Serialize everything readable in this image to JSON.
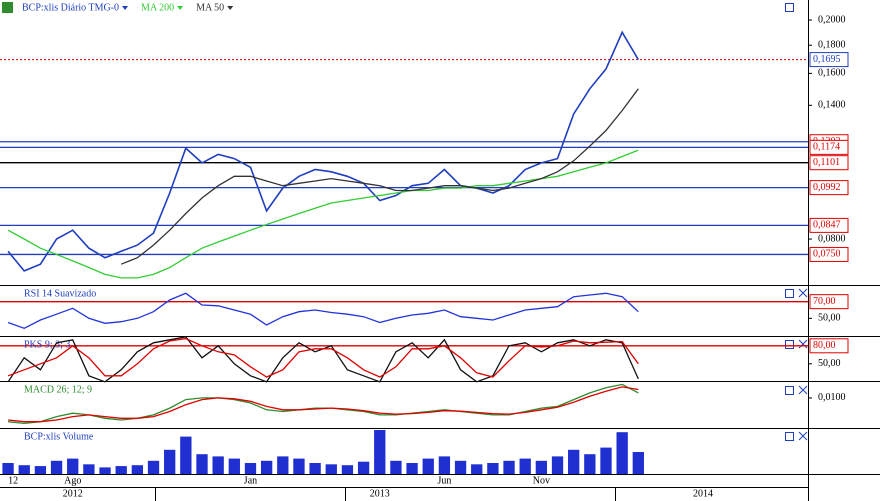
{
  "chart_data": [
    {
      "type": "line",
      "log": true,
      "ylim": [
        0.066,
        0.2175
      ],
      "yticks": [
        {
          "value": 0.2,
          "label": "0,2000"
        },
        {
          "value": 0.18,
          "label": "0,1800"
        },
        {
          "value": 0.16,
          "label": "0,1600"
        },
        {
          "value": 0.14,
          "label": "0,1400"
        },
        {
          "value": 0.08,
          "label": "0,0800"
        }
      ],
      "categories": [
        "12",
        null,
        null,
        null,
        "Ago",
        null,
        null,
        null,
        null,
        null,
        null,
        null,
        null,
        null,
        null,
        "Jan",
        null,
        null,
        null,
        null,
        null,
        null,
        null,
        null,
        null,
        null,
        null,
        "Jun",
        null,
        null,
        null,
        null,
        null,
        "Nov",
        null,
        null,
        null,
        null,
        null,
        null,
        null,
        null,
        null,
        null,
        null,
        null,
        null,
        null,
        null,
        null
      ],
      "year_labels": [
        null,
        null,
        null,
        null,
        "2012",
        null,
        null,
        null,
        null,
        null,
        null,
        null,
        null,
        null,
        null,
        null,
        null,
        null,
        null,
        null,
        null,
        null,
        null,
        "2013",
        null,
        null,
        null,
        null,
        null,
        null,
        null,
        null,
        null,
        null,
        null,
        null,
        null,
        null,
        null,
        null,
        null,
        null,
        null,
        "2014",
        null,
        null,
        null,
        null,
        null,
        null
      ],
      "series": [
        {
          "name": "BCP:xlis Diário TMG-0",
          "color": "#1f3fbf",
          "values": [
            0.076,
            0.07,
            0.072,
            0.08,
            0.083,
            0.077,
            0.074,
            0.076,
            0.078,
            0.082,
            0.097,
            0.117,
            0.11,
            0.114,
            0.112,
            0.108,
            0.09,
            0.099,
            0.104,
            0.107,
            0.106,
            0.104,
            0.101,
            0.094,
            0.096,
            0.1,
            0.101,
            0.107,
            0.1,
            0.099,
            0.097,
            0.1,
            0.107,
            0.11,
            0.112,
            0.135,
            0.15,
            0.163,
            0.19,
            0.1695,
            null,
            null,
            null,
            null,
            null,
            null,
            null,
            null,
            null,
            null
          ]
        },
        {
          "name": "MA 200",
          "color": "#33cc33",
          "values": [
            0.083,
            0.08,
            0.077,
            0.075,
            0.073,
            0.071,
            0.069,
            0.068,
            0.068,
            0.069,
            0.071,
            0.074,
            0.077,
            0.079,
            0.081,
            0.083,
            0.085,
            0.087,
            0.089,
            0.091,
            0.093,
            0.094,
            0.095,
            0.096,
            0.097,
            0.098,
            0.098,
            0.099,
            0.099,
            0.1,
            0.1,
            0.101,
            0.102,
            0.103,
            0.104,
            0.106,
            0.108,
            0.11,
            0.113,
            0.116,
            null,
            null,
            null,
            null,
            null,
            null,
            null,
            null,
            null,
            null
          ]
        },
        {
          "name": "MA 50",
          "color": "#333333",
          "values": [
            null,
            null,
            null,
            null,
            null,
            null,
            null,
            0.072,
            0.074,
            0.078,
            0.083,
            0.089,
            0.095,
            0.1,
            0.104,
            0.104,
            0.102,
            0.1,
            0.101,
            0.102,
            0.103,
            0.102,
            0.101,
            0.1,
            0.098,
            0.098,
            0.099,
            0.1,
            0.1,
            0.099,
            0.098,
            0.099,
            0.101,
            0.103,
            0.106,
            0.111,
            0.118,
            0.126,
            0.137,
            0.15,
            null,
            null,
            null,
            null,
            null,
            null,
            null,
            null,
            null,
            null
          ]
        }
      ],
      "levels": [
        {
          "value": 0.1202,
          "label": "0,1202",
          "color": "#1f3fbf"
        },
        {
          "value": 0.1174,
          "label": "0,1174",
          "color": "#1f3fbf"
        },
        {
          "value": 0.1101,
          "label": "0,1101",
          "color": "#000000"
        },
        {
          "value": 0.0992,
          "label": "0,0992",
          "color": "#1f3fbf"
        },
        {
          "value": 0.0847,
          "label": "0,0847",
          "color": "#1f3fbf"
        },
        {
          "value": 0.075,
          "label": "0,0750",
          "color": "#1f3fbf"
        }
      ],
      "last": {
        "value": 0.1695,
        "label": "0,1695",
        "color": "#1f3fbf"
      }
    },
    {
      "type": "line",
      "title": "RSI 14 Suavizado",
      "ylim": [
        30,
        87.6
      ],
      "yticks": [
        {
          "value": 50,
          "label": "50,00"
        }
      ],
      "levels": [
        {
          "value": 70,
          "label": "70,00",
          "color": "#e00000"
        }
      ],
      "series": [
        {
          "color": "#2233dd",
          "values": [
            45,
            38,
            48,
            55,
            62,
            50,
            44,
            46,
            50,
            58,
            72,
            80,
            66,
            65,
            60,
            55,
            42,
            52,
            58,
            60,
            57,
            55,
            52,
            45,
            50,
            54,
            56,
            60,
            52,
            50,
            48,
            54,
            60,
            62,
            64,
            76,
            78,
            80,
            76,
            58,
            null,
            null,
            null,
            null,
            null,
            null,
            null,
            null,
            null,
            null
          ]
        }
      ]
    },
    {
      "type": "line",
      "title": "PKS 9; 3; 3",
      "ylim": [
        23,
        93
      ],
      "yticks": [
        {
          "value": 50,
          "label": "50,00"
        }
      ],
      "levels": [
        {
          "value": 80,
          "label": "80,00",
          "color": "#e00000"
        }
      ],
      "series": [
        {
          "color": "#111111",
          "values": [
            20,
            60,
            40,
            85,
            90,
            30,
            20,
            40,
            70,
            85,
            90,
            95,
            60,
            80,
            50,
            30,
            20,
            60,
            85,
            70,
            80,
            40,
            30,
            20,
            70,
            85,
            60,
            90,
            40,
            20,
            30,
            80,
            85,
            70,
            85,
            90,
            80,
            90,
            85,
            25,
            null,
            null,
            null,
            null,
            null,
            null,
            null,
            null,
            null,
            null
          ]
        },
        {
          "color": "#e00000",
          "values": [
            30,
            40,
            50,
            60,
            80,
            60,
            30,
            30,
            50,
            75,
            88,
            92,
            80,
            70,
            65,
            45,
            28,
            40,
            70,
            75,
            75,
            60,
            40,
            28,
            45,
            75,
            75,
            80,
            60,
            35,
            28,
            55,
            80,
            78,
            80,
            88,
            85,
            86,
            87,
            50,
            null,
            null,
            null,
            null,
            null,
            null,
            null,
            null,
            null,
            null
          ]
        }
      ]
    },
    {
      "type": "line",
      "title": "MACD 26; 12; 9",
      "ylim": [
        -0.0071,
        0.0188
      ],
      "yticks": [
        {
          "value": 0.01,
          "label": "0,0100"
        }
      ],
      "series": [
        {
          "color": "#2e8b2e",
          "values": [
            -0.004,
            -0.005,
            -0.004,
            -0.001,
            0.001,
            0,
            -0.002,
            -0.003,
            -0.002,
            0,
            0.004,
            0.009,
            0.01,
            0.01,
            0.009,
            0.007,
            0.003,
            0.002,
            0.003,
            0.004,
            0.004,
            0.003,
            0.002,
            0,
            0,
            0.001,
            0.002,
            0.003,
            0.002,
            0.001,
            0,
            0,
            0.002,
            0.004,
            0.005,
            0.009,
            0.013,
            0.016,
            0.018,
            0.013,
            null,
            null,
            null,
            null,
            null,
            null,
            null,
            null,
            null,
            null
          ]
        },
        {
          "color": "#e00000",
          "values": [
            -0.003,
            -0.004,
            -0.004,
            -0.003,
            -0.001,
            0,
            -0.001,
            -0.002,
            -0.002,
            -0.001,
            0.002,
            0.006,
            0.009,
            0.01,
            0.0095,
            0.008,
            0.005,
            0.003,
            0.003,
            0.0035,
            0.004,
            0.0035,
            0.0025,
            0.001,
            0.0005,
            0.0008,
            0.0015,
            0.0025,
            0.0022,
            0.0015,
            0.0008,
            0.0005,
            0.0015,
            0.003,
            0.0045,
            0.0075,
            0.011,
            0.014,
            0.0165,
            0.015,
            null,
            null,
            null,
            null,
            null,
            null,
            null,
            null,
            null,
            null
          ]
        }
      ]
    },
    {
      "type": "bar",
      "title": "BCP:xlis Volume",
      "ylim": [
        0,
        100
      ],
      "color": "#1f2fd0",
      "values": [
        25,
        20,
        18,
        30,
        35,
        22,
        15,
        18,
        20,
        30,
        55,
        85,
        45,
        40,
        35,
        25,
        30,
        40,
        35,
        25,
        22,
        20,
        28,
        100,
        30,
        25,
        35,
        40,
        30,
        22,
        25,
        30,
        35,
        30,
        40,
        55,
        45,
        60,
        95,
        50,
        null,
        null,
        null,
        null,
        null,
        null,
        null,
        null,
        null,
        null
      ]
    }
  ]
}
